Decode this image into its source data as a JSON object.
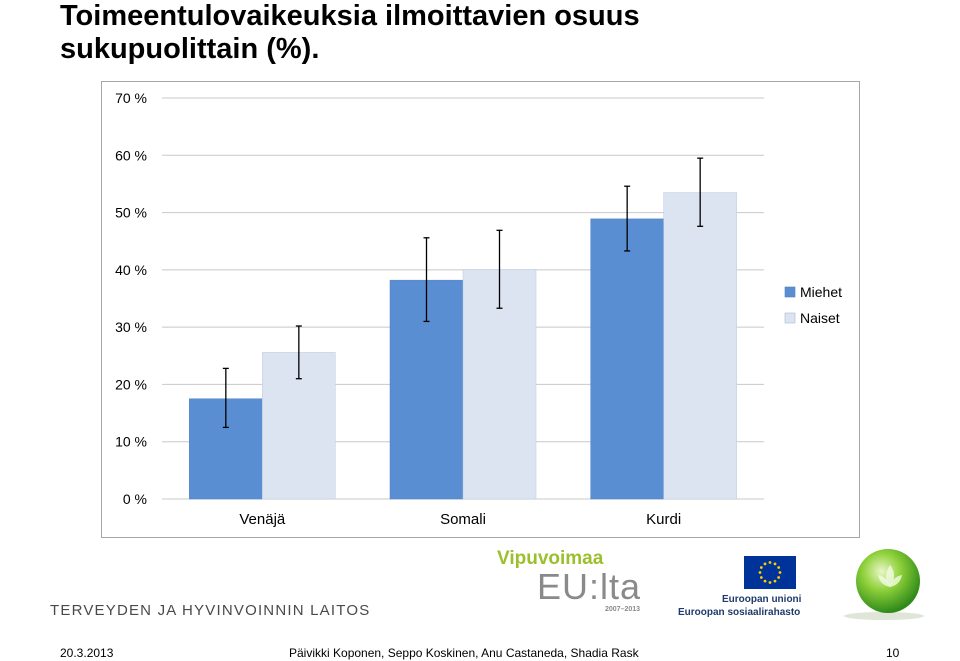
{
  "slide": {
    "title_line1": "Toimeentulovaikeuksia ilmoittavien osuus",
    "title_line2": "sukupuolittain (%)."
  },
  "chart_data": {
    "type": "bar",
    "categories": [
      "Venäjä",
      "Somali",
      "Kurdi"
    ],
    "series": [
      {
        "name": "Miehet",
        "color": "#5a8ed2",
        "values": [
          17.5,
          38.2,
          48.9
        ],
        "error_low": [
          12.5,
          31.0,
          43.3
        ],
        "error_high": [
          22.8,
          45.6,
          54.6
        ]
      },
      {
        "name": "Naiset",
        "color": "#dbe4f0",
        "values": [
          25.6,
          40.1,
          53.5
        ],
        "error_low": [
          21.0,
          33.3,
          47.6
        ],
        "error_high": [
          30.2,
          46.9,
          59.5
        ]
      }
    ],
    "ylim": [
      0,
      70
    ],
    "yticks": [
      "0 %",
      "10 %",
      "20 %",
      "30 %",
      "40 %",
      "50 %",
      "60 %",
      "70 %"
    ],
    "grid": true,
    "legend_position": "right"
  },
  "logos": {
    "thl": "TERVEYDEN JA HYVINVOINNIN LAITOS",
    "vipuvoimaa": "Vipuvoimaa",
    "eulta": "EU:lta",
    "years": "2007–2013",
    "eu_line1": "Euroopan unioni",
    "eu_line2": "Euroopan sosiaalirahasto"
  },
  "footer": {
    "date": "20.3.2013",
    "authors": "Päivikki Koponen, Seppo Koskinen, Anu Castaneda, Shadia Rask",
    "page": "10"
  }
}
